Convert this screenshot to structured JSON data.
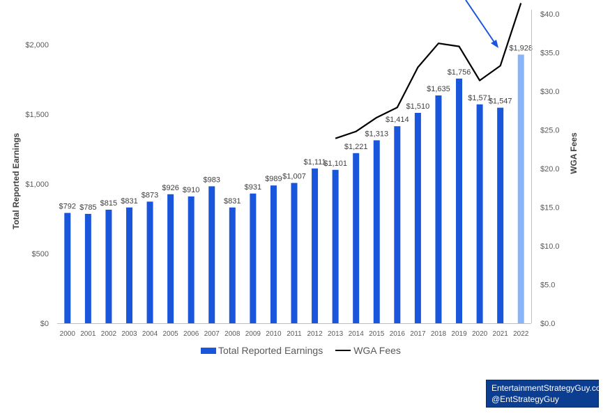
{
  "chart_data": {
    "type": "bar+line",
    "categories": [
      "2000",
      "2001",
      "2002",
      "2003",
      "2004",
      "2005",
      "2006",
      "2007",
      "2008",
      "2009",
      "2010",
      "2011",
      "2012",
      "2013",
      "2014",
      "2015",
      "2016",
      "2017",
      "2018",
      "2019",
      "2020",
      "2021",
      "2022"
    ],
    "series": [
      {
        "name": "Total Reported Earnings",
        "type": "bar",
        "axis": "left",
        "color": "#1a56db",
        "highlight_color": "#8ab4f8",
        "highlight_category": "2022",
        "values": [
          792,
          785,
          815,
          831,
          873,
          926,
          910,
          983,
          831,
          931,
          989,
          1007,
          1111,
          1101,
          1221,
          1313,
          1414,
          1510,
          1635,
          1756,
          1571,
          1547,
          1928
        ],
        "labels": [
          "$792",
          "$785",
          "$815",
          "$831",
          "$873",
          "$926",
          "$910",
          "$983",
          "$831",
          "$931",
          "$989",
          "$1,007",
          "$1,111",
          "$1,101",
          "$1,221",
          "$1,313",
          "$1,414",
          "$1,510",
          "$1,635",
          "$1,756",
          "$1,571",
          "$1,547",
          "$1,928"
        ]
      },
      {
        "name": "WGA Fees",
        "type": "line",
        "axis": "right",
        "color": "#000000",
        "values": [
          null,
          null,
          null,
          null,
          null,
          null,
          null,
          null,
          null,
          null,
          null,
          null,
          null,
          23.9,
          24.8,
          26.6,
          27.9,
          33.1,
          36.2,
          35.8,
          31.4,
          33.3,
          41.4
        ]
      }
    ],
    "ylabel": "Total Reported Earnings",
    "y2label": "WGA Fees",
    "ylim": [
      0,
      2000
    ],
    "y2lim": [
      0,
      40
    ],
    "yticks": [
      "$0",
      "$500",
      "$1,000",
      "$1,500",
      "$2,000"
    ],
    "y2ticks": [
      "$0.0",
      "$5.0",
      "$10.0",
      "$15.0",
      "$20.0",
      "$25.0",
      "$30.0",
      "$35.0",
      "$40.0"
    ],
    "legend_position": "bottom",
    "grid": false
  },
  "legend": {
    "earnings_label": "Total Reported Earnings",
    "fees_label": "WGA Fees"
  },
  "credit": {
    "line1": "EntertainmentStrategyGuy.com",
    "line2": "@EntStrategyGuy"
  },
  "colors": {
    "arrow": "#1a56db"
  }
}
